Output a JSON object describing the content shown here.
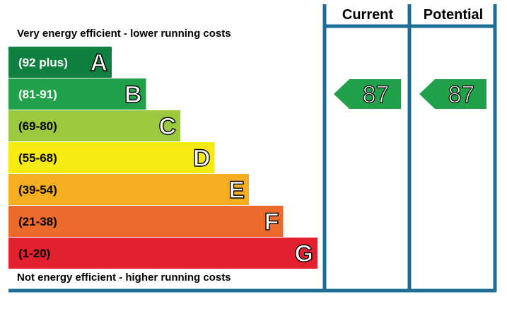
{
  "chart_data": {
    "type": "table",
    "title": "",
    "top_caption": "Very energy efficient - lower running costs",
    "bottom_caption": "Not energy efficient - higher running costs",
    "columns": [
      "Current",
      "Potential"
    ],
    "bands": [
      {
        "letter": "A",
        "range": "(92 plus)",
        "min": 92,
        "max": 100,
        "color": "#0f8040",
        "text_color": "#ffffff"
      },
      {
        "letter": "B",
        "range": "(81-91)",
        "min": 81,
        "max": 91,
        "color": "#21a24a",
        "text_color": "#ffffff"
      },
      {
        "letter": "C",
        "range": "(69-80)",
        "min": 69,
        "max": 80,
        "color": "#9bc83f",
        "text_color": "#000000"
      },
      {
        "letter": "D",
        "range": "(55-68)",
        "min": 55,
        "max": 68,
        "color": "#f6ea13",
        "text_color": "#000000"
      },
      {
        "letter": "E",
        "range": "(39-54)",
        "min": 39,
        "max": 54,
        "color": "#f4ae1f",
        "text_color": "#000000"
      },
      {
        "letter": "F",
        "range": "(21-38)",
        "min": 21,
        "max": 38,
        "color": "#ec6a2b",
        "text_color": "#000000"
      },
      {
        "letter": "G",
        "range": "(1-20)",
        "min": 1,
        "max": 20,
        "color": "#e3202d",
        "text_color": "#000000"
      }
    ],
    "current": {
      "value": 87,
      "label": "87",
      "band": "B",
      "color": "#21a24a"
    },
    "potential": {
      "value": 87,
      "label": "87",
      "band": "B",
      "color": "#21a24a"
    },
    "frame_color": "#1e6f96"
  }
}
